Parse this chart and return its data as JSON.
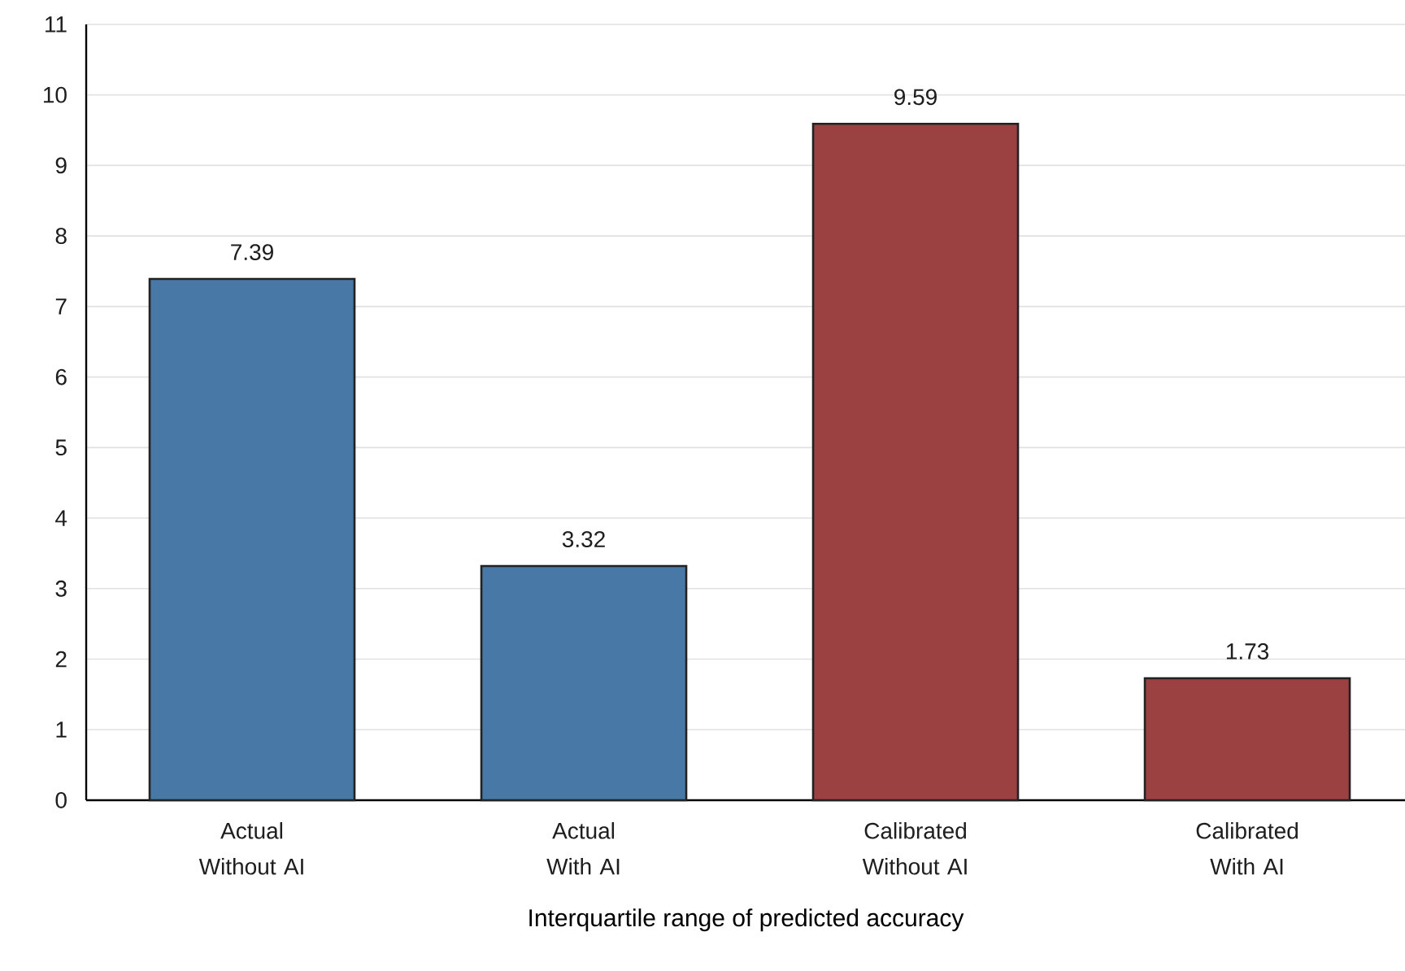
{
  "chart_data": {
    "type": "bar",
    "xlabel": "Interquartile range of predicted accuracy",
    "categories": [
      "Actual Without AI",
      "Actual With AI",
      "Calibrated Without AI",
      "Calibrated With AI"
    ],
    "values": [
      7.39,
      3.32,
      9.59,
      1.73
    ],
    "colors": [
      "#4878a5",
      "#4878a5",
      "#9b4142",
      "#9b4142"
    ],
    "ylim": [
      0,
      11
    ],
    "yticks": [
      0,
      1,
      2,
      3,
      4,
      5,
      6,
      7,
      8,
      9,
      10,
      11
    ],
    "grid": "y",
    "data_labels": true
  }
}
